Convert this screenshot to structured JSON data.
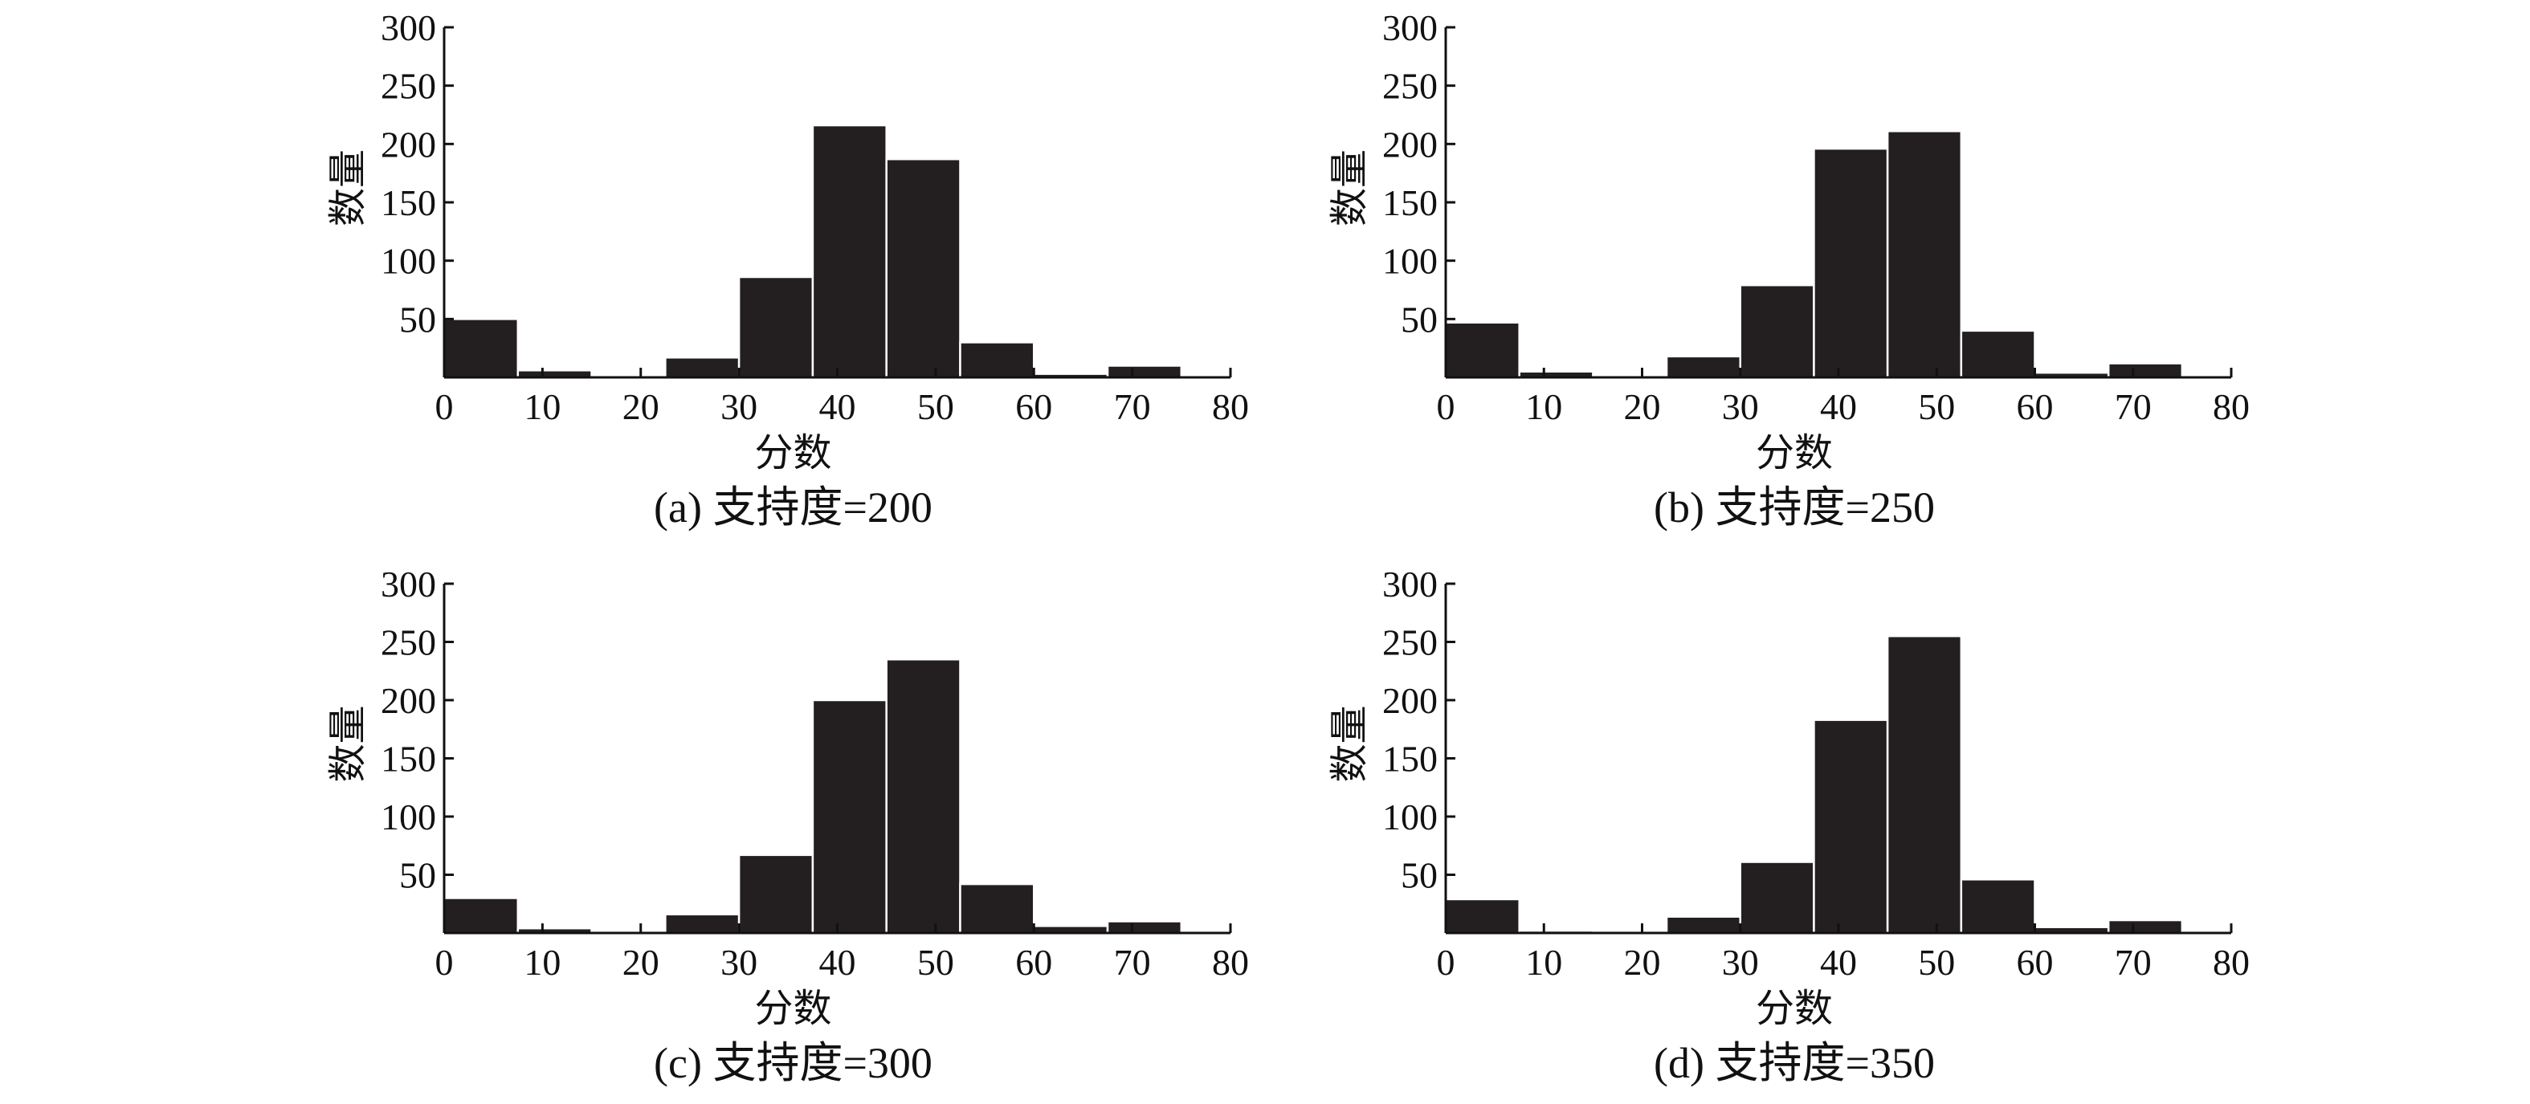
{
  "colors": {
    "bar_fill": "#231f20",
    "bar_edge": "#ffffff",
    "axis": "#111111"
  },
  "chart_data": [
    {
      "type": "bar",
      "caption": "(a) 支持度=200",
      "xlabel": "分数",
      "ylabel": "数量",
      "xlim": [
        0,
        80
      ],
      "ylim": [
        0,
        300
      ],
      "xticks": [
        0,
        10,
        20,
        30,
        40,
        50,
        60,
        70,
        80
      ],
      "yticks": [
        50,
        100,
        150,
        200,
        250,
        300
      ],
      "bin_width": 7.5,
      "bin_starts": [
        0,
        7.5,
        15,
        22.5,
        30,
        37.5,
        45,
        52.5,
        60,
        67.5
      ],
      "values": [
        50,
        6,
        0,
        17,
        86,
        216,
        187,
        30,
        3,
        10
      ]
    },
    {
      "type": "bar",
      "caption": "(b) 支持度=250",
      "xlabel": "分数",
      "ylabel": "数量",
      "xlim": [
        0,
        80
      ],
      "ylim": [
        0,
        300
      ],
      "xticks": [
        0,
        10,
        20,
        30,
        40,
        50,
        60,
        70,
        80
      ],
      "yticks": [
        50,
        100,
        150,
        200,
        250,
        300
      ],
      "bin_width": 7.5,
      "bin_starts": [
        0,
        7.5,
        15,
        22.5,
        30,
        37.5,
        45,
        52.5,
        60,
        67.5
      ],
      "values": [
        47,
        5,
        1,
        18,
        79,
        196,
        211,
        40,
        4,
        12
      ]
    },
    {
      "type": "bar",
      "caption": "(c) 支持度=300",
      "xlabel": "分数",
      "ylabel": "数量",
      "xlim": [
        0,
        80
      ],
      "ylim": [
        0,
        300
      ],
      "xticks": [
        0,
        10,
        20,
        30,
        40,
        50,
        60,
        70,
        80
      ],
      "yticks": [
        50,
        100,
        150,
        200,
        250,
        300
      ],
      "bin_width": 7.5,
      "bin_starts": [
        0,
        7.5,
        15,
        22.5,
        30,
        37.5,
        45,
        52.5,
        60,
        67.5
      ],
      "values": [
        30,
        4,
        1,
        16,
        67,
        200,
        235,
        42,
        6,
        10
      ]
    },
    {
      "type": "bar",
      "caption": "(d) 支持度=350",
      "xlabel": "分数",
      "ylabel": "数量",
      "xlim": [
        0,
        80
      ],
      "ylim": [
        0,
        300
      ],
      "xticks": [
        0,
        10,
        20,
        30,
        40,
        50,
        60,
        70,
        80
      ],
      "yticks": [
        50,
        100,
        150,
        200,
        250,
        300
      ],
      "bin_width": 7.5,
      "bin_starts": [
        0,
        7.5,
        15,
        22.5,
        30,
        37.5,
        45,
        52.5,
        60,
        67.5
      ],
      "values": [
        29,
        2,
        0,
        14,
        61,
        183,
        255,
        46,
        5,
        11
      ]
    }
  ]
}
